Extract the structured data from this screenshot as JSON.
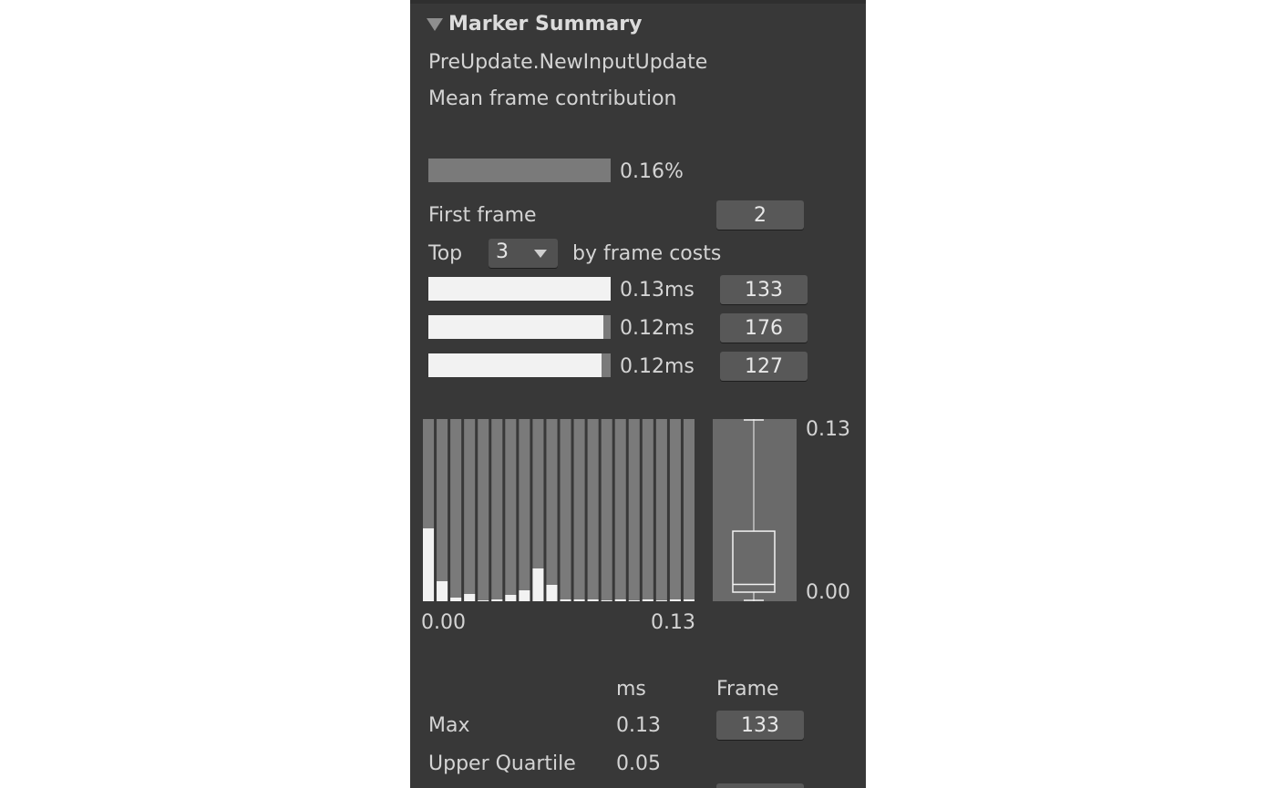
{
  "section": {
    "title": "Marker Summary"
  },
  "marker": {
    "name": "PreUpdate.NewInputUpdate",
    "contribution_label": "Mean frame contribution",
    "contribution_value": "0.16%",
    "contribution_fraction": 1.0
  },
  "first_frame": {
    "label": "First frame",
    "value": "2"
  },
  "top": {
    "label_prefix": "Top",
    "selected": "3",
    "label_suffix": "by frame costs"
  },
  "top_frames": [
    {
      "time": "0.13ms",
      "frame": "133",
      "fraction": 1.0
    },
    {
      "time": "0.12ms",
      "frame": "176",
      "fraction": 0.96
    },
    {
      "time": "0.12ms",
      "frame": "127",
      "fraction": 0.95
    }
  ],
  "histogram": {
    "x_min_label": "0.00",
    "x_max_label": "0.13",
    "bucket_fractions": [
      0.4,
      0.11,
      0.02,
      0.04,
      0.0,
      0.005,
      0.035,
      0.06,
      0.18,
      0.09,
      0.005,
      0.005,
      0.01,
      0.0,
      0.01,
      0.0,
      0.01,
      0.0,
      0.01,
      0.01
    ]
  },
  "boxplot": {
    "y_max_label": "0.13",
    "y_min_label": "0.00",
    "min": 0.0,
    "lower_quartile": 0.0065,
    "median": 0.012,
    "upper_quartile": 0.05,
    "max": 0.13
  },
  "stats": {
    "col_ms": "ms",
    "col_frame": "Frame",
    "rows": [
      {
        "label": "Max",
        "value": "0.13",
        "frame": "133"
      },
      {
        "label": "Upper Quartile",
        "value": "0.05",
        "frame": ""
      }
    ]
  },
  "colors": {
    "panel": "#383838",
    "bar_bg": "#7a7a7a",
    "bar_fill": "#f2f2f2",
    "button": "#585858"
  }
}
